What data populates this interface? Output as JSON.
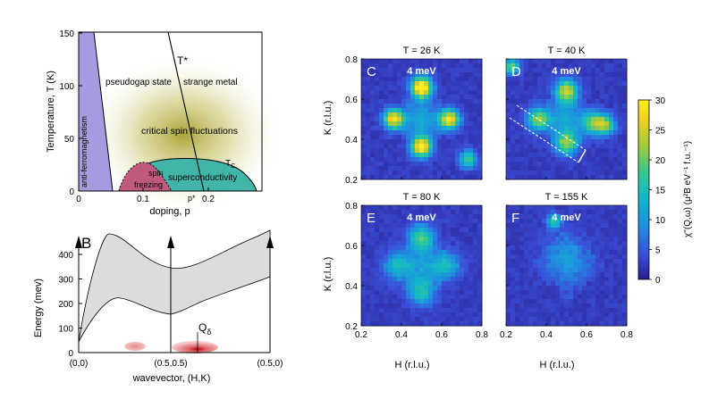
{
  "panel_a": {
    "ylabel": "Temperature, T (K)",
    "xlabel": "doping, p",
    "yticks": [
      "0",
      "50",
      "100",
      "150"
    ],
    "xticks": [
      "0",
      "0.1",
      "0.2"
    ],
    "labels": {
      "afm": "anti-ferromagnetism",
      "pseudogap": "pseudogap state",
      "strange_metal": "strange metal",
      "tstar": "T*",
      "critical": "critical spin fluctuations",
      "spin_freezing_1": "spin",
      "spin_freezing_2": "freezing",
      "superconductivity": "superconductivity",
      "tc": "T",
      "tc_sub": "C",
      "pstar": "p*"
    }
  },
  "panel_b": {
    "letter": "B",
    "ylabel": "Energy (mev)",
    "xlabel": "wavevector, (H,K)",
    "yticks": [
      "0",
      "100",
      "200",
      "300",
      "400"
    ],
    "xticks": [
      "(0,0)",
      "(0.5,0.5)",
      "(0.5,0)"
    ],
    "q_label": "Q",
    "q_sub": "δ"
  },
  "maps": {
    "ylabel": "K (r.l.u.)",
    "xlabel": "H (r.l.u.)",
    "ticks": [
      "0.2",
      "0.4",
      "0.6",
      "0.8"
    ],
    "panels": [
      {
        "letter": "C",
        "title": "T = 26 K",
        "energy": "4 meV"
      },
      {
        "letter": "D",
        "title": "T = 40 K",
        "energy": "4 meV"
      },
      {
        "letter": "E",
        "title": "T = 80 K",
        "energy": "4 meV"
      },
      {
        "letter": "F",
        "title": "T = 155 K",
        "energy": "4 meV"
      }
    ],
    "colorbar": {
      "label": "χ''(Q,ω) (μ²B eV⁻¹ f.u.⁻¹)",
      "ticks": [
        "0",
        "5",
        "10",
        "15",
        "20",
        "25",
        "30"
      ],
      "colors": [
        "#2b1d8f",
        "#3a4fd8",
        "#1f8fe0",
        "#12b7c9",
        "#35c98e",
        "#a5cc3a",
        "#f2d022",
        "#f9f020"
      ]
    }
  }
}
